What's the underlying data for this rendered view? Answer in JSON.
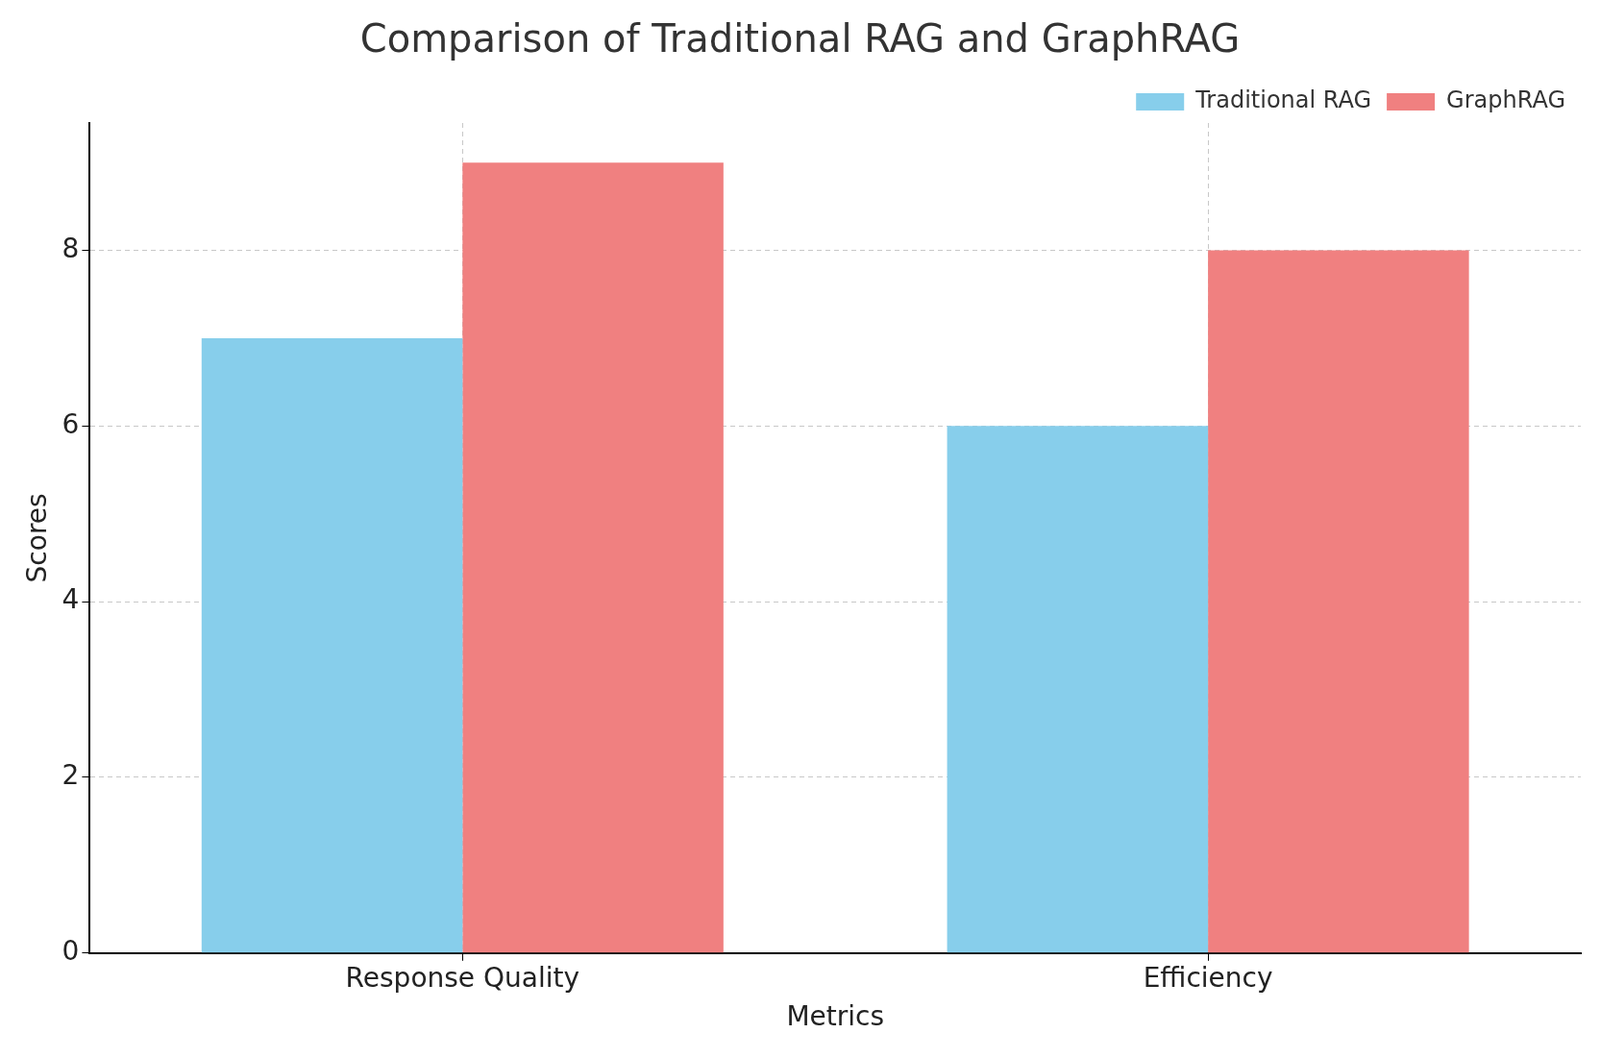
{
  "chart_data": {
    "type": "bar",
    "title": "Comparison of Traditional RAG and GraphRAG",
    "x_label": "Metrics",
    "y_label": "Scores",
    "categories": [
      "Response Quality",
      "Efficiency"
    ],
    "series": [
      {
        "name": "Traditional RAG",
        "color": "#87ceeb",
        "values": [
          7,
          6
        ]
      },
      {
        "name": "GraphRAG",
        "color": "#f08080",
        "values": [
          9,
          8
        ]
      }
    ],
    "ylim": [
      0,
      9.45
    ],
    "yticks": [
      0,
      2,
      4,
      6,
      8
    ],
    "grid": true,
    "legend": "upper right"
  }
}
